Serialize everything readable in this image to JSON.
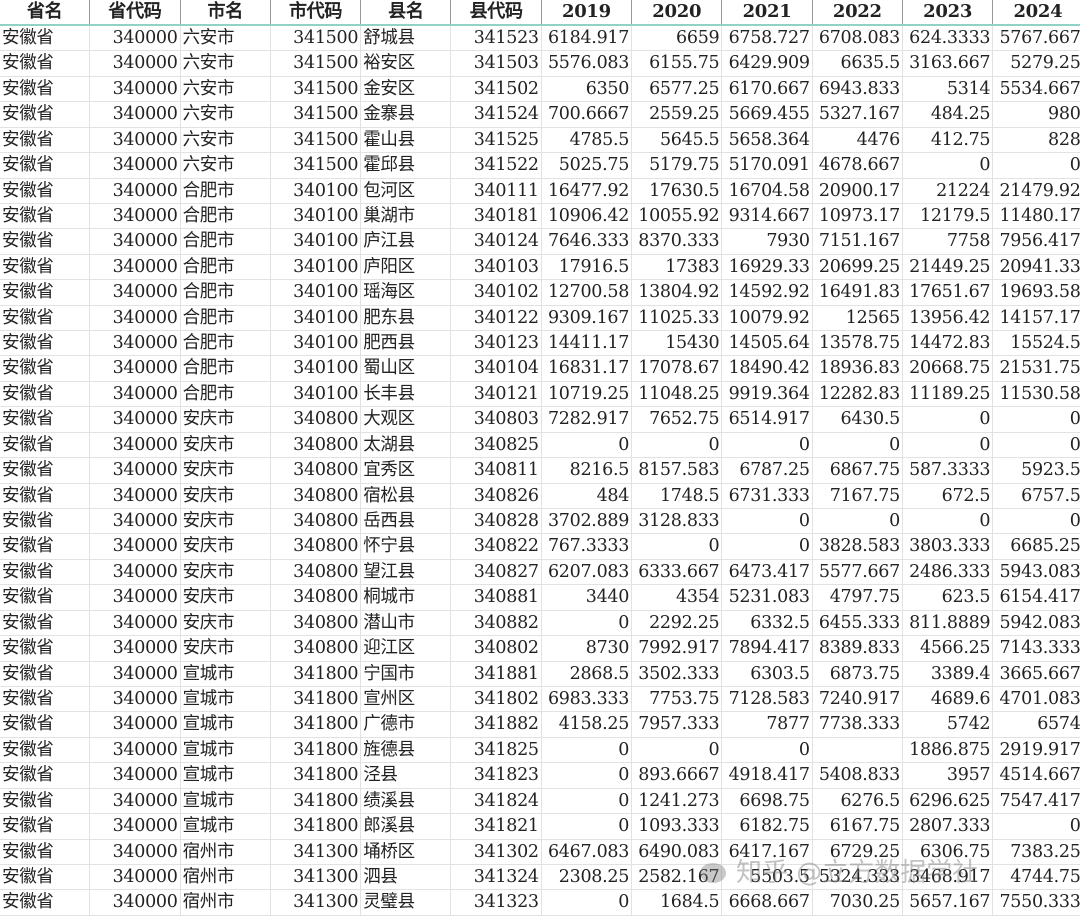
{
  "headers": [
    "省名",
    "省代码",
    "市名",
    "市代码",
    "县名",
    "县代码",
    "2019",
    "2020",
    "2021",
    "2022",
    "2023",
    "2024"
  ],
  "rows": [
    [
      "安徽省",
      "340000",
      "六安市",
      "341500",
      "舒城县",
      "341523",
      "6184.917",
      "6659",
      "6758.727",
      "6708.083",
      "624.3333",
      "5767.667"
    ],
    [
      "安徽省",
      "340000",
      "六安市",
      "341500",
      "裕安区",
      "341503",
      "5576.083",
      "6155.75",
      "6429.909",
      "6635.5",
      "3163.667",
      "5279.25"
    ],
    [
      "安徽省",
      "340000",
      "六安市",
      "341500",
      "金安区",
      "341502",
      "6350",
      "6577.25",
      "6170.667",
      "6943.833",
      "5314",
      "5534.667"
    ],
    [
      "安徽省",
      "340000",
      "六安市",
      "341500",
      "金寨县",
      "341524",
      "700.6667",
      "2559.25",
      "5669.455",
      "5327.167",
      "484.25",
      "980"
    ],
    [
      "安徽省",
      "340000",
      "六安市",
      "341500",
      "霍山县",
      "341525",
      "4785.5",
      "5645.5",
      "5658.364",
      "4476",
      "412.75",
      "828"
    ],
    [
      "安徽省",
      "340000",
      "六安市",
      "341500",
      "霍邱县",
      "341522",
      "5025.75",
      "5179.75",
      "5170.091",
      "4678.667",
      "0",
      "0"
    ],
    [
      "安徽省",
      "340000",
      "合肥市",
      "340100",
      "包河区",
      "340111",
      "16477.92",
      "17630.5",
      "16704.58",
      "20900.17",
      "21224",
      "21479.92"
    ],
    [
      "安徽省",
      "340000",
      "合肥市",
      "340100",
      "巢湖市",
      "340181",
      "10906.42",
      "10055.92",
      "9314.667",
      "10973.17",
      "12179.5",
      "11480.17"
    ],
    [
      "安徽省",
      "340000",
      "合肥市",
      "340100",
      "庐江县",
      "340124",
      "7646.333",
      "8370.333",
      "7930",
      "7151.167",
      "7758",
      "7956.417"
    ],
    [
      "安徽省",
      "340000",
      "合肥市",
      "340100",
      "庐阳区",
      "340103",
      "17916.5",
      "17383",
      "16929.33",
      "20699.25",
      "21449.25",
      "20941.33"
    ],
    [
      "安徽省",
      "340000",
      "合肥市",
      "340100",
      "瑶海区",
      "340102",
      "12700.58",
      "13804.92",
      "14592.92",
      "16491.83",
      "17651.67",
      "19693.58"
    ],
    [
      "安徽省",
      "340000",
      "合肥市",
      "340100",
      "肥东县",
      "340122",
      "9309.167",
      "11025.33",
      "10079.92",
      "12565",
      "13956.42",
      "14157.17"
    ],
    [
      "安徽省",
      "340000",
      "合肥市",
      "340100",
      "肥西县",
      "340123",
      "14411.17",
      "15430",
      "14505.64",
      "13578.75",
      "14472.83",
      "15524.5"
    ],
    [
      "安徽省",
      "340000",
      "合肥市",
      "340100",
      "蜀山区",
      "340104",
      "16831.17",
      "17078.67",
      "18490.42",
      "18936.83",
      "20668.75",
      "21531.75"
    ],
    [
      "安徽省",
      "340000",
      "合肥市",
      "340100",
      "长丰县",
      "340121",
      "10719.25",
      "11048.25",
      "9919.364",
      "12282.83",
      "11189.25",
      "11530.58"
    ],
    [
      "安徽省",
      "340000",
      "安庆市",
      "340800",
      "大观区",
      "340803",
      "7282.917",
      "7652.75",
      "6514.917",
      "6430.5",
      "0",
      "0"
    ],
    [
      "安徽省",
      "340000",
      "安庆市",
      "340800",
      "太湖县",
      "340825",
      "0",
      "0",
      "0",
      "0",
      "0",
      "0"
    ],
    [
      "安徽省",
      "340000",
      "安庆市",
      "340800",
      "宜秀区",
      "340811",
      "8216.5",
      "8157.583",
      "6787.25",
      "6867.75",
      "587.3333",
      "5923.5"
    ],
    [
      "安徽省",
      "340000",
      "安庆市",
      "340800",
      "宿松县",
      "340826",
      "484",
      "1748.5",
      "6731.333",
      "7167.75",
      "672.5",
      "6757.5"
    ],
    [
      "安徽省",
      "340000",
      "安庆市",
      "340800",
      "岳西县",
      "340828",
      "3702.889",
      "3128.833",
      "0",
      "0",
      "0",
      "0"
    ],
    [
      "安徽省",
      "340000",
      "安庆市",
      "340800",
      "怀宁县",
      "340822",
      "767.3333",
      "0",
      "0",
      "3828.583",
      "3803.333",
      "6685.25"
    ],
    [
      "安徽省",
      "340000",
      "安庆市",
      "340800",
      "望江县",
      "340827",
      "6207.083",
      "6333.667",
      "6473.417",
      "5577.667",
      "2486.333",
      "5943.083"
    ],
    [
      "安徽省",
      "340000",
      "安庆市",
      "340800",
      "桐城市",
      "340881",
      "3440",
      "4354",
      "5231.083",
      "4797.75",
      "623.5",
      "6154.417"
    ],
    [
      "安徽省",
      "340000",
      "安庆市",
      "340800",
      "潜山市",
      "340882",
      "0",
      "2292.25",
      "6332.5",
      "6455.333",
      "811.8889",
      "5942.083"
    ],
    [
      "安徽省",
      "340000",
      "安庆市",
      "340800",
      "迎江区",
      "340802",
      "8730",
      "7992.917",
      "7894.417",
      "8389.833",
      "4566.25",
      "7143.333"
    ],
    [
      "安徽省",
      "340000",
      "宣城市",
      "341800",
      "宁国市",
      "341881",
      "2868.5",
      "3502.333",
      "6303.5",
      "6873.75",
      "3389.4",
      "3665.667"
    ],
    [
      "安徽省",
      "340000",
      "宣城市",
      "341800",
      "宣州区",
      "341802",
      "6983.333",
      "7753.75",
      "7128.583",
      "7240.917",
      "4689.6",
      "4701.083"
    ],
    [
      "安徽省",
      "340000",
      "宣城市",
      "341800",
      "广德市",
      "341882",
      "4158.25",
      "7957.333",
      "7877",
      "7738.333",
      "5742",
      "6574"
    ],
    [
      "安徽省",
      "340000",
      "宣城市",
      "341800",
      "旌德县",
      "341825",
      "0",
      "0",
      "0",
      "",
      "1886.875",
      "2919.917"
    ],
    [
      "安徽省",
      "340000",
      "宣城市",
      "341800",
      "泾县",
      "341823",
      "0",
      "893.6667",
      "4918.417",
      "5408.833",
      "3957",
      "4514.667"
    ],
    [
      "安徽省",
      "340000",
      "宣城市",
      "341800",
      "绩溪县",
      "341824",
      "0",
      "1241.273",
      "6698.75",
      "6276.5",
      "6296.625",
      "7547.417"
    ],
    [
      "安徽省",
      "340000",
      "宣城市",
      "341800",
      "郎溪县",
      "341821",
      "0",
      "1093.333",
      "6182.75",
      "6167.75",
      "2807.333",
      "0"
    ],
    [
      "安徽省",
      "340000",
      "宿州市",
      "341300",
      "埇桥区",
      "341302",
      "6467.083",
      "6490.083",
      "6417.167",
      "6729.25",
      "6306.75",
      "7383.25"
    ],
    [
      "安徽省",
      "340000",
      "宿州市",
      "341300",
      "泗县",
      "341324",
      "2308.25",
      "2582.167",
      "5503.5",
      "5324.333",
      "3468.917",
      "4744.75"
    ],
    [
      "安徽省",
      "340000",
      "宿州市",
      "341300",
      "灵璧县",
      "341323",
      "0",
      "1684.5",
      "6668.667",
      "7030.25",
      "5657.167",
      "7550.333"
    ]
  ],
  "text_columns": [
    0,
    2,
    4
  ],
  "watermark": "知乎 @立方数据学社",
  "colors": {
    "header_border": "#8fd3c7",
    "gridline": "#e2e2e2"
  }
}
